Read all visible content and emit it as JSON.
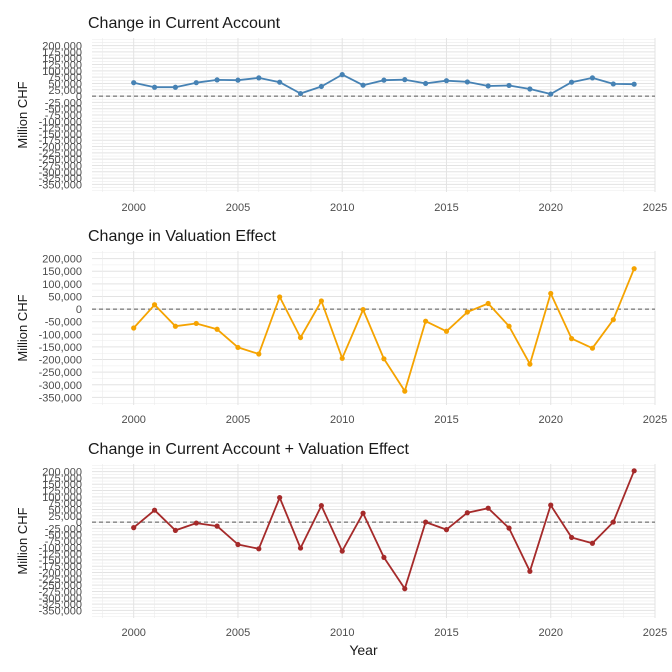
{
  "chart_data": [
    {
      "type": "line",
      "title": "Change in Current Account",
      "ylabel": "Million CHF",
      "xlabel": "",
      "color": "#4682b4",
      "x": [
        2000,
        2001,
        2002,
        2003,
        2004,
        2005,
        2006,
        2007,
        2008,
        2009,
        2010,
        2011,
        2012,
        2013,
        2014,
        2015,
        2016,
        2017,
        2018,
        2019,
        2020,
        2021,
        2022,
        2023,
        2024
      ],
      "values": [
        53000,
        35000,
        35000,
        53000,
        64000,
        63000,
        72000,
        55000,
        10000,
        38000,
        85000,
        43000,
        63000,
        65000,
        50000,
        61000,
        56000,
        40000,
        42000,
        28000,
        8000,
        55000,
        72000,
        48000,
        47000
      ],
      "xlim": [
        1998,
        2025
      ],
      "ylim": [
        -380000,
        230000
      ],
      "yticks": [
        200000,
        175000,
        150000,
        125000,
        100000,
        75000,
        50000,
        25000,
        0,
        -25000,
        -50000,
        -75000,
        -100000,
        -125000,
        -150000,
        -175000,
        -200000,
        -225000,
        -250000,
        -275000,
        -300000,
        -325000,
        -350000
      ],
      "ytick_labels": [
        "200,000",
        "175,000",
        "150,000",
        "125,000",
        "100,000",
        "75,000",
        "50,000",
        "25,000",
        "0",
        "-25,000",
        "-50,000",
        "-75,000",
        "-100,000",
        "-125,000",
        "-150,000",
        "-175,000",
        "-200,000",
        "-225,000",
        "-250,000",
        "-275,000",
        "-300,000",
        "-325,000",
        "-350,000"
      ],
      "xticks": [
        2000,
        2005,
        2010,
        2015,
        2020,
        2025
      ],
      "xtick_labels": [
        "2000",
        "2005",
        "2010",
        "2015",
        "2020",
        "2025"
      ],
      "grid": true,
      "reference_line": 0
    },
    {
      "type": "line",
      "title": "Change in Valuation Effect",
      "ylabel": "Million CHF",
      "xlabel": "",
      "color": "#f5a300",
      "x": [
        2000,
        2001,
        2002,
        2003,
        2004,
        2005,
        2006,
        2007,
        2008,
        2009,
        2010,
        2011,
        2012,
        2013,
        2014,
        2015,
        2016,
        2017,
        2018,
        2019,
        2020,
        2021,
        2022,
        2023,
        2024
      ],
      "values": [
        -75000,
        17000,
        -68000,
        -57000,
        -80000,
        -152000,
        -178000,
        48000,
        -113000,
        32000,
        -195000,
        -2000,
        -197000,
        -325000,
        -48000,
        -88000,
        -12000,
        22000,
        -68000,
        -218000,
        62000,
        -117000,
        -155000,
        -42000,
        160000
      ],
      "xlim": [
        1998,
        2025
      ],
      "ylim": [
        -380000,
        230000
      ],
      "yticks": [
        200000,
        150000,
        100000,
        50000,
        0,
        -50000,
        -100000,
        -150000,
        -200000,
        -250000,
        -300000,
        -350000
      ],
      "ytick_labels": [
        "200,000",
        "150,000",
        "100,000",
        "50,000",
        "0",
        "-50,000",
        "-100,000",
        "-150,000",
        "-200,000",
        "-250,000",
        "-300,000",
        "-350,000"
      ],
      "xticks": [
        2000,
        2005,
        2010,
        2015,
        2020,
        2025
      ],
      "xtick_labels": [
        "2000",
        "2005",
        "2010",
        "2015",
        "2020",
        "2025"
      ],
      "grid": true,
      "reference_line": 0
    },
    {
      "type": "line",
      "title": "Change in Current Account + Valuation Effect",
      "ylabel": "Million CHF",
      "xlabel": "Year",
      "color": "#a52a2a",
      "x": [
        2000,
        2001,
        2002,
        2003,
        2004,
        2005,
        2006,
        2007,
        2008,
        2009,
        2010,
        2011,
        2012,
        2013,
        2014,
        2015,
        2016,
        2017,
        2018,
        2019,
        2020,
        2021,
        2022,
        2023,
        2024
      ],
      "values": [
        -22000,
        47000,
        -33000,
        -4000,
        -16000,
        -89000,
        -106000,
        97000,
        -103000,
        65000,
        -115000,
        35000,
        -140000,
        -264000,
        0,
        -30000,
        37000,
        55000,
        -24000,
        -195000,
        67000,
        -61000,
        -84000,
        0,
        203000
      ],
      "xlim": [
        1998,
        2025
      ],
      "ylim": [
        -380000,
        230000
      ],
      "yticks": [
        200000,
        175000,
        150000,
        125000,
        100000,
        75000,
        50000,
        25000,
        0,
        -25000,
        -50000,
        -75000,
        -100000,
        -125000,
        -150000,
        -175000,
        -200000,
        -225000,
        -250000,
        -275000,
        -300000,
        -325000,
        -350000
      ],
      "ytick_labels": [
        "200,000",
        "175,000",
        "150,000",
        "125,000",
        "100,000",
        "75,000",
        "50,000",
        "25,000",
        "0",
        "-25,000",
        "-50,000",
        "-75,000",
        "-100,000",
        "-125,000",
        "-150,000",
        "-175,000",
        "-200,000",
        "-225,000",
        "-250,000",
        "-275,000",
        "-300,000",
        "-325,000",
        "-350,000"
      ],
      "xticks": [
        2000,
        2005,
        2010,
        2015,
        2020,
        2025
      ],
      "xtick_labels": [
        "2000",
        "2005",
        "2010",
        "2015",
        "2020",
        "2025"
      ],
      "grid": true,
      "reference_line": 0
    }
  ]
}
